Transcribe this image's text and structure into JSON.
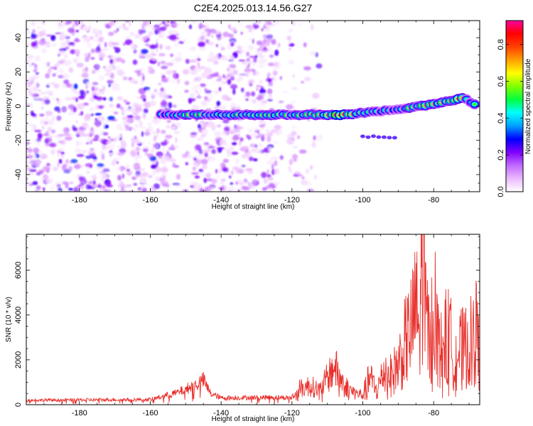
{
  "title": "C2E4.2025.013.14.56.G27",
  "chart_data": [
    {
      "type": "heatmap",
      "xlabel": "Height of straight line (km)",
      "ylabel": "Frequency (Hz)",
      "xlim": [
        -195,
        -67
      ],
      "ylim": [
        -50,
        50
      ],
      "x_ticks": [
        -180,
        -160,
        -140,
        -120,
        -100,
        -80
      ],
      "y_ticks": [
        -40,
        -20,
        0,
        20,
        40
      ],
      "colorbar": {
        "label": "Normalized spectral amplitude",
        "range": [
          0,
          0.93
        ],
        "ticks": [
          0,
          0.2,
          0.4,
          0.6,
          0.8
        ],
        "colors": [
          "#ffffff",
          "#ebb9ff",
          "#c06aff",
          "#8000ff",
          "#0000ff",
          "#00a0ff",
          "#00ffff",
          "#00ff40",
          "#80ff00",
          "#ffff00",
          "#ffa000",
          "#ff4000",
          "#ff0000",
          "#ff00a0"
        ]
      },
      "noise_region": {
        "x": [
          -195,
          -120
        ],
        "fade_x": -112,
        "amplitude": [
          0.02,
          0.25
        ]
      },
      "gap_bands": [
        [
          -152,
          -148
        ],
        [
          -124,
          -121
        ]
      ],
      "carrier_track": {
        "x": [
          -157,
          -150,
          -140,
          -130,
          -120,
          -110,
          -105,
          -100,
          -95,
          -90,
          -85,
          -80,
          -75,
          -72,
          -70,
          -68
        ],
        "frequency": [
          -5,
          -5,
          -5,
          -5,
          -5,
          -5,
          -5,
          -4,
          -3,
          -2,
          0,
          1,
          3,
          5,
          3,
          1
        ],
        "amplitude": [
          0.45,
          0.6,
          0.5,
          0.55,
          0.55,
          0.75,
          0.85,
          0.5,
          0.45,
          0.5,
          0.6,
          0.7,
          0.6,
          0.75,
          0.4,
          0.75
        ]
      },
      "secondary_track": {
        "x": [
          -100,
          -90
        ],
        "frequency": [
          -18,
          -18
        ],
        "amplitude": 0.25
      }
    },
    {
      "type": "line",
      "xlabel": "Height of straight line (km)",
      "ylabel": "SNR (10 * v/v)",
      "xlim": [
        -195,
        -67
      ],
      "ylim": [
        0,
        7600
      ],
      "x_ticks": [
        -180,
        -160,
        -140,
        -120,
        -100,
        -80
      ],
      "y_ticks": [
        0,
        2000,
        4000,
        6000
      ],
      "color": "#e8302c",
      "series": [
        {
          "x": [
            -195,
            -160,
            -157,
            -152,
            -150,
            -147,
            -145,
            -143,
            -140,
            -130,
            -125,
            -120,
            -118,
            -115,
            -112,
            -110,
            -108,
            -106,
            -104,
            -102,
            -100,
            -98,
            -96,
            -94,
            -92,
            -90,
            -88,
            -86,
            -85,
            -84,
            -83,
            -82,
            -81,
            -80,
            -79,
            -78,
            -76,
            -74,
            -72,
            -70,
            -68,
            -67
          ],
          "y": [
            200,
            230,
            350,
            550,
            700,
            900,
            1100,
            500,
            300,
            320,
            330,
            300,
            700,
            850,
            650,
            1200,
            1700,
            1100,
            700,
            500,
            450,
            1200,
            600,
            1500,
            1300,
            1800,
            2800,
            3500,
            4500,
            3000,
            7400,
            4000,
            2500,
            5200,
            3000,
            2400,
            3200,
            2200,
            2500,
            2600,
            3300,
            2000
          ]
        }
      ]
    }
  ]
}
